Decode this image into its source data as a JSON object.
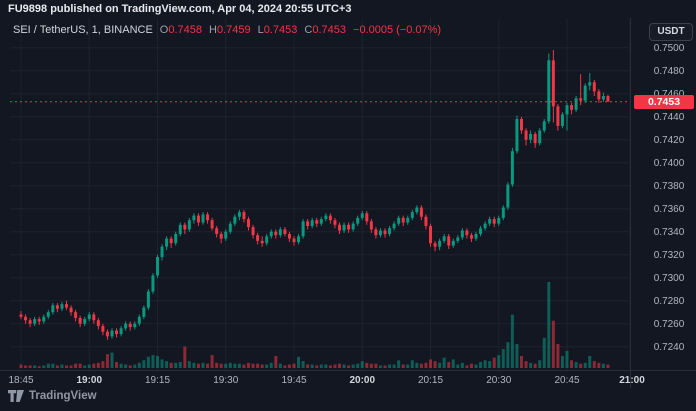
{
  "header": {
    "attribution": "FU9898 published on TradingView.com, Apr 04, 2024 20:55 UTC+3"
  },
  "legend": {
    "symbol": "SEI / TetherUS, 1, BINANCE",
    "o_label": "O",
    "o_value": "0.7458",
    "h_label": "H",
    "h_value": "0.7459",
    "l_label": "L",
    "l_value": "0.7453",
    "c_label": "C",
    "c_value": "0.7453",
    "change": "−0.0005 (−0.07%)"
  },
  "price_axis": {
    "currency_label": "USDT"
  },
  "footer": {
    "brand": "TradingView"
  },
  "chart_data": {
    "type": "candlestick",
    "title": "SEI / TetherUS",
    "exchange": "BINANCE",
    "interval": "1",
    "start_time": "18:45",
    "interval_min": 1,
    "last_price": 0.7453,
    "last_price_label": "0.7453",
    "ylim": [
      0.724,
      0.75
    ],
    "y_ticks": [
      0.75,
      0.748,
      0.746,
      0.744,
      0.742,
      0.74,
      0.738,
      0.736,
      0.734,
      0.732,
      0.73,
      0.728,
      0.726,
      0.724
    ],
    "x_ticks": [
      {
        "label": "18:45",
        "t": 0,
        "major": false
      },
      {
        "label": "19:00",
        "t": 15,
        "major": true
      },
      {
        "label": "19:15",
        "t": 30,
        "major": false
      },
      {
        "label": "19:30",
        "t": 45,
        "major": false
      },
      {
        "label": "19:45",
        "t": 60,
        "major": false
      },
      {
        "label": "20:00",
        "t": 75,
        "major": true
      },
      {
        "label": "20:15",
        "t": 90,
        "major": false
      },
      {
        "label": "20:30",
        "t": 105,
        "major": false
      },
      {
        "label": "20:45",
        "t": 120,
        "major": false
      },
      {
        "label": "21:00",
        "t": 135,
        "major": true
      }
    ],
    "colors": {
      "up": "#089981",
      "down": "#f23645",
      "price_line": "#f23645",
      "grid": "#1e222d",
      "axis_text": "#b2b5be",
      "axis_text_major": "#d3d6de",
      "separator": "#2a2e39"
    },
    "columns": [
      "open",
      "high",
      "low",
      "close",
      "volume"
    ],
    "candles": [
      [
        0.7268,
        0.7271,
        0.7264,
        0.7266,
        4
      ],
      [
        0.7266,
        0.7268,
        0.726,
        0.7263,
        3
      ],
      [
        0.7263,
        0.7265,
        0.7257,
        0.726,
        3
      ],
      [
        0.726,
        0.7266,
        0.7258,
        0.7264,
        3
      ],
      [
        0.7264,
        0.7266,
        0.7259,
        0.7262,
        2
      ],
      [
        0.7262,
        0.7268,
        0.726,
        0.7266,
        3
      ],
      [
        0.7266,
        0.7272,
        0.7264,
        0.727,
        5
      ],
      [
        0.727,
        0.7278,
        0.7268,
        0.7276,
        5
      ],
      [
        0.7276,
        0.7278,
        0.727,
        0.7273,
        3
      ],
      [
        0.7273,
        0.7279,
        0.7271,
        0.7277,
        4
      ],
      [
        0.7277,
        0.728,
        0.7272,
        0.7274,
        3
      ],
      [
        0.7274,
        0.7276,
        0.7267,
        0.727,
        3
      ],
      [
        0.727,
        0.7272,
        0.7262,
        0.7265,
        5
      ],
      [
        0.7265,
        0.7267,
        0.7257,
        0.726,
        5
      ],
      [
        0.726,
        0.7266,
        0.7258,
        0.7264,
        3
      ],
      [
        0.7264,
        0.727,
        0.7262,
        0.7268,
        4
      ],
      [
        0.7268,
        0.727,
        0.726,
        0.7263,
        5
      ],
      [
        0.7263,
        0.7265,
        0.7255,
        0.7258,
        6
      ],
      [
        0.7258,
        0.726,
        0.725,
        0.7253,
        8
      ],
      [
        0.7253,
        0.7255,
        0.7246,
        0.7249,
        16
      ],
      [
        0.7249,
        0.7256,
        0.7247,
        0.7254,
        18
      ],
      [
        0.7254,
        0.7256,
        0.7248,
        0.7251,
        7
      ],
      [
        0.7251,
        0.7258,
        0.7249,
        0.7256,
        5
      ],
      [
        0.7256,
        0.7262,
        0.7254,
        0.726,
        4
      ],
      [
        0.726,
        0.7262,
        0.7254,
        0.7257,
        3
      ],
      [
        0.7257,
        0.7262,
        0.7255,
        0.726,
        4
      ],
      [
        0.726,
        0.7268,
        0.7258,
        0.7266,
        6
      ],
      [
        0.7266,
        0.7276,
        0.7264,
        0.7274,
        9
      ],
      [
        0.7274,
        0.729,
        0.7272,
        0.7288,
        13
      ],
      [
        0.7288,
        0.7304,
        0.7286,
        0.7302,
        15
      ],
      [
        0.7302,
        0.732,
        0.73,
        0.7318,
        14
      ],
      [
        0.7318,
        0.7329,
        0.7315,
        0.7327,
        10
      ],
      [
        0.7327,
        0.7336,
        0.7324,
        0.7334,
        8
      ],
      [
        0.7334,
        0.7336,
        0.7326,
        0.733,
        6
      ],
      [
        0.733,
        0.734,
        0.7328,
        0.7338,
        6
      ],
      [
        0.7338,
        0.7348,
        0.7336,
        0.7346,
        7
      ],
      [
        0.7346,
        0.7348,
        0.7338,
        0.7342,
        25
      ],
      [
        0.7342,
        0.7352,
        0.734,
        0.735,
        8
      ],
      [
        0.735,
        0.7356,
        0.7347,
        0.7354,
        6
      ],
      [
        0.7354,
        0.7356,
        0.7345,
        0.7348,
        5
      ],
      [
        0.7348,
        0.7357,
        0.7346,
        0.7355,
        6
      ],
      [
        0.7355,
        0.7357,
        0.7347,
        0.735,
        5
      ],
      [
        0.735,
        0.7352,
        0.7341,
        0.7343,
        15
      ],
      [
        0.7343,
        0.7345,
        0.7335,
        0.7338,
        6
      ],
      [
        0.7338,
        0.734,
        0.733,
        0.7334,
        5
      ],
      [
        0.7334,
        0.7342,
        0.7332,
        0.734,
        5
      ],
      [
        0.734,
        0.7349,
        0.7338,
        0.7347,
        6
      ],
      [
        0.7347,
        0.7355,
        0.7345,
        0.7353,
        5
      ],
      [
        0.7353,
        0.7359,
        0.735,
        0.7357,
        5
      ],
      [
        0.7357,
        0.7359,
        0.7348,
        0.7351,
        4
      ],
      [
        0.7351,
        0.7353,
        0.7341,
        0.7344,
        6
      ],
      [
        0.7344,
        0.7346,
        0.7334,
        0.7337,
        5
      ],
      [
        0.7337,
        0.7339,
        0.7329,
        0.7332,
        5
      ],
      [
        0.7332,
        0.7336,
        0.7327,
        0.733,
        4
      ],
      [
        0.733,
        0.7338,
        0.7328,
        0.7336,
        4
      ],
      [
        0.7336,
        0.7342,
        0.7334,
        0.734,
        6
      ],
      [
        0.734,
        0.7342,
        0.7334,
        0.7337,
        14
      ],
      [
        0.7337,
        0.7344,
        0.7335,
        0.7342,
        5
      ],
      [
        0.7342,
        0.7344,
        0.7336,
        0.7338,
        3
      ],
      [
        0.7338,
        0.734,
        0.7331,
        0.7334,
        4
      ],
      [
        0.7334,
        0.7336,
        0.7328,
        0.7331,
        5
      ],
      [
        0.7331,
        0.7338,
        0.7329,
        0.7336,
        13
      ],
      [
        0.7336,
        0.7351,
        0.7334,
        0.7349,
        8
      ],
      [
        0.7349,
        0.7351,
        0.7342,
        0.7345,
        4
      ],
      [
        0.7345,
        0.7352,
        0.7343,
        0.735,
        4
      ],
      [
        0.735,
        0.7352,
        0.7344,
        0.7347,
        3
      ],
      [
        0.7347,
        0.7353,
        0.7345,
        0.7351,
        4
      ],
      [
        0.7351,
        0.7356,
        0.7349,
        0.7354,
        4
      ],
      [
        0.7354,
        0.7356,
        0.7347,
        0.735,
        3
      ],
      [
        0.735,
        0.7352,
        0.7343,
        0.7346,
        4
      ],
      [
        0.7346,
        0.7348,
        0.7338,
        0.7341,
        5
      ],
      [
        0.7341,
        0.7348,
        0.7339,
        0.7346,
        4
      ],
      [
        0.7346,
        0.7348,
        0.7339,
        0.7342,
        3
      ],
      [
        0.7342,
        0.7349,
        0.734,
        0.7347,
        4
      ],
      [
        0.7347,
        0.7354,
        0.7345,
        0.7352,
        5
      ],
      [
        0.7352,
        0.7358,
        0.735,
        0.7356,
        8
      ],
      [
        0.7356,
        0.7358,
        0.7346,
        0.7349,
        6
      ],
      [
        0.7349,
        0.7351,
        0.7339,
        0.7342,
        5
      ],
      [
        0.7342,
        0.7344,
        0.7334,
        0.7337,
        5
      ],
      [
        0.7337,
        0.7343,
        0.7335,
        0.7341,
        3
      ],
      [
        0.7341,
        0.7343,
        0.7335,
        0.7338,
        3
      ],
      [
        0.7338,
        0.7345,
        0.7336,
        0.7343,
        4
      ],
      [
        0.7343,
        0.7349,
        0.7341,
        0.7347,
        4
      ],
      [
        0.7347,
        0.7354,
        0.7345,
        0.7352,
        9
      ],
      [
        0.7352,
        0.7354,
        0.7345,
        0.7348,
        4
      ],
      [
        0.7348,
        0.7354,
        0.7346,
        0.7352,
        4
      ],
      [
        0.7352,
        0.7359,
        0.735,
        0.7357,
        9
      ],
      [
        0.7357,
        0.7363,
        0.7355,
        0.7361,
        6
      ],
      [
        0.7361,
        0.7363,
        0.735,
        0.7353,
        5
      ],
      [
        0.7353,
        0.7355,
        0.7342,
        0.7345,
        6
      ],
      [
        0.7345,
        0.7347,
        0.7327,
        0.733,
        10
      ],
      [
        0.733,
        0.7332,
        0.7323,
        0.7327,
        8
      ],
      [
        0.7327,
        0.7334,
        0.7324,
        0.7332,
        6
      ],
      [
        0.7332,
        0.7338,
        0.733,
        0.7336,
        12
      ],
      [
        0.7336,
        0.7338,
        0.7325,
        0.7328,
        7
      ],
      [
        0.7328,
        0.7334,
        0.7326,
        0.7332,
        10
      ],
      [
        0.7332,
        0.7337,
        0.733,
        0.7335,
        4
      ],
      [
        0.7335,
        0.7343,
        0.7333,
        0.7341,
        6
      ],
      [
        0.7341,
        0.7343,
        0.7334,
        0.7337,
        3
      ],
      [
        0.7337,
        0.7339,
        0.7331,
        0.7334,
        5
      ],
      [
        0.7334,
        0.734,
        0.7332,
        0.7338,
        4
      ],
      [
        0.7338,
        0.7345,
        0.7336,
        0.7343,
        7
      ],
      [
        0.7343,
        0.7349,
        0.7341,
        0.7347,
        9
      ],
      [
        0.7347,
        0.7353,
        0.7345,
        0.7351,
        8
      ],
      [
        0.7351,
        0.7353,
        0.7344,
        0.7347,
        12
      ],
      [
        0.7347,
        0.7354,
        0.7345,
        0.7352,
        15
      ],
      [
        0.7352,
        0.7363,
        0.735,
        0.7361,
        22
      ],
      [
        0.7361,
        0.7383,
        0.7359,
        0.7381,
        30
      ],
      [
        0.7381,
        0.7413,
        0.7379,
        0.741,
        62
      ],
      [
        0.741,
        0.7441,
        0.7408,
        0.7438,
        28
      ],
      [
        0.7438,
        0.744,
        0.7425,
        0.7428,
        14
      ],
      [
        0.7428,
        0.743,
        0.7415,
        0.742,
        8
      ],
      [
        0.742,
        0.7428,
        0.7417,
        0.7425,
        6
      ],
      [
        0.7425,
        0.7427,
        0.7413,
        0.7417,
        5
      ],
      [
        0.7417,
        0.743,
        0.7415,
        0.7428,
        9
      ],
      [
        0.7428,
        0.7438,
        0.7426,
        0.7436,
        35
      ],
      [
        0.7436,
        0.7495,
        0.7434,
        0.7489,
        100
      ],
      [
        0.7489,
        0.7498,
        0.7435,
        0.7449,
        55
      ],
      [
        0.7449,
        0.7451,
        0.7428,
        0.7432,
        28
      ],
      [
        0.7432,
        0.7444,
        0.743,
        0.7442,
        14
      ],
      [
        0.7442,
        0.7452,
        0.7428,
        0.745,
        20
      ],
      [
        0.745,
        0.7452,
        0.7442,
        0.7446,
        9
      ],
      [
        0.7446,
        0.7458,
        0.7444,
        0.7456,
        7
      ],
      [
        0.7456,
        0.7477,
        0.745,
        0.7454,
        5
      ],
      [
        0.7454,
        0.7469,
        0.7452,
        0.7467,
        6
      ],
      [
        0.7467,
        0.7478,
        0.7463,
        0.747,
        14
      ],
      [
        0.747,
        0.7472,
        0.7458,
        0.7462,
        8
      ],
      [
        0.7462,
        0.7464,
        0.7452,
        0.7455,
        6
      ],
      [
        0.7455,
        0.7461,
        0.7453,
        0.7458,
        5
      ],
      [
        0.7458,
        0.7459,
        0.7453,
        0.7453,
        4
      ]
    ]
  }
}
